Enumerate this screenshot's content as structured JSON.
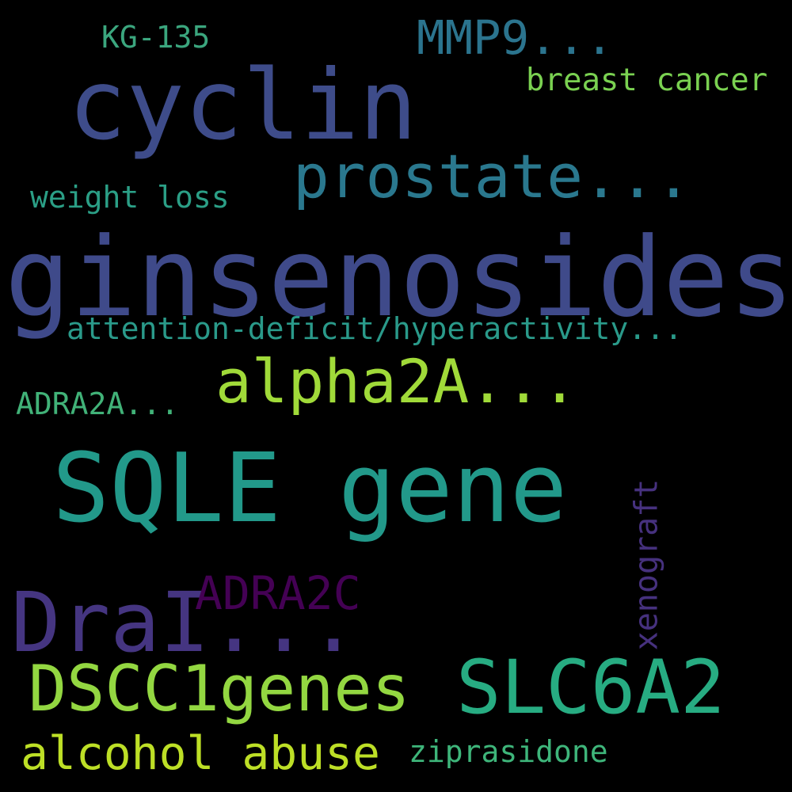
{
  "background": "#000000",
  "words": [
    {
      "id": "cyclin",
      "text": "cyclin",
      "color": "#3e4c8a"
    },
    {
      "id": "ginsenosides",
      "text": "ginsenosides",
      "color": "#3f4a8a"
    },
    {
      "id": "sqle-gene",
      "text": "SQLE gene",
      "color": "#22998a"
    },
    {
      "id": "drai",
      "text": "DraI...",
      "color": "#453581"
    },
    {
      "id": "slc6a2",
      "text": "SLC6A2",
      "color": "#27ac82"
    },
    {
      "id": "dscc1genes",
      "text": "DSCC1genes",
      "color": "#93d741"
    },
    {
      "id": "prostate",
      "text": "prostate...",
      "color": "#2a788e"
    },
    {
      "id": "alpha2a",
      "text": "alpha2A...",
      "color": "#a0da39"
    },
    {
      "id": "alcohol-abuse",
      "text": "alcohol abuse",
      "color": "#bddf26"
    },
    {
      "id": "mmp9",
      "text": "MMP9...",
      "color": "#2b748e"
    },
    {
      "id": "adra2c",
      "text": "ADRA2C",
      "color": "#440154"
    },
    {
      "id": "attention",
      "text": "attention-deficit/hyperactivity...",
      "color": "#2a9a8a"
    },
    {
      "id": "breast-cancer",
      "text": "breast cancer",
      "color": "#7ad151"
    },
    {
      "id": "weight-loss",
      "text": "weight loss",
      "color": "#2b9f86"
    },
    {
      "id": "ziprasidone",
      "text": "ziprasidone",
      "color": "#3eb57a"
    },
    {
      "id": "xenograft",
      "text": "xenograft",
      "color": "#46317e"
    },
    {
      "id": "kg-135",
      "text": "KG-135",
      "color": "#3ba67e"
    },
    {
      "id": "adra2a",
      "text": "ADRA2A...",
      "color": "#41b278"
    }
  ]
}
